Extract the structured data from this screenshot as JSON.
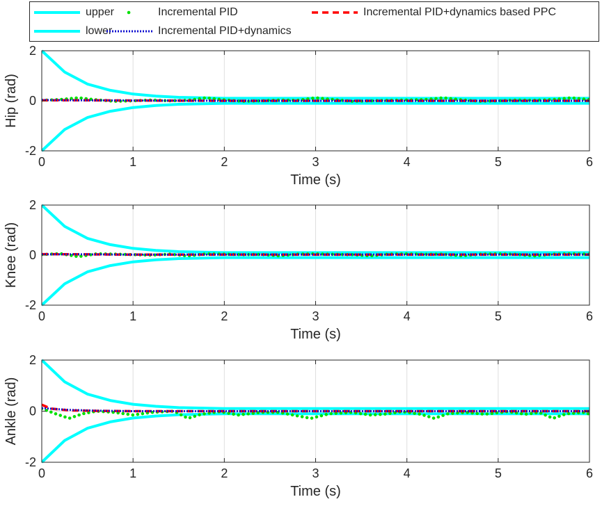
{
  "chart_data": [
    {
      "type": "line",
      "xlabel": "Time (s)",
      "ylabel": "Hip (rad)",
      "xlim": [
        0,
        6
      ],
      "ylim": [
        -2,
        2
      ],
      "xticks": [
        "0",
        "1",
        "2",
        "3",
        "4",
        "5",
        "6"
      ],
      "yticks": [
        "-2",
        "0",
        "2"
      ],
      "grid": true,
      "series": [
        {
          "name": "upper",
          "style": "solid",
          "color": "#00ffff",
          "x": [
            0,
            0.25,
            0.5,
            0.75,
            1.0,
            1.25,
            1.5,
            2.0,
            3.0,
            6.0
          ],
          "y": [
            2.0,
            1.15,
            0.67,
            0.42,
            0.27,
            0.19,
            0.14,
            0.1,
            0.1,
            0.1
          ]
        },
        {
          "name": "lower",
          "style": "solid",
          "color": "#00ffff",
          "x": [
            0,
            0.25,
            0.5,
            0.75,
            1.0,
            1.25,
            1.5,
            2.0,
            3.0,
            6.0
          ],
          "y": [
            -2.0,
            -1.15,
            -0.67,
            -0.42,
            -0.27,
            -0.19,
            -0.14,
            -0.1,
            -0.1,
            -0.1
          ]
        },
        {
          "name": "Incremental PID",
          "style": "dot",
          "color": "#00e000",
          "x": [
            0,
            0.2,
            0.4,
            0.6,
            0.8,
            1.0,
            1.2,
            1.4,
            1.6,
            1.8,
            2.0,
            2.2,
            2.4,
            2.6,
            2.8,
            3.0,
            3.2,
            3.4,
            3.6,
            3.8,
            4.0,
            4.2,
            4.4,
            4.6,
            4.8,
            5.0,
            5.2,
            5.4,
            5.6,
            5.8,
            6.0
          ],
          "y": [
            0.02,
            0.05,
            0.12,
            0.04,
            -0.02,
            0.0,
            0.03,
            0.0,
            0.02,
            0.12,
            0.04,
            -0.02,
            0.0,
            0.03,
            0.02,
            0.12,
            0.05,
            -0.02,
            0.0,
            0.02,
            0.03,
            0.05,
            0.12,
            0.04,
            -0.02,
            0.0,
            0.03,
            0.02,
            0.05,
            0.12,
            0.05
          ]
        },
        {
          "name": "Incremental PID+dynamics",
          "style": "dotted",
          "color": "#1010d0",
          "x": [
            0,
            0.5,
            1.0,
            2.0,
            3.0,
            4.0,
            5.0,
            6.0
          ],
          "y": [
            0.03,
            0.02,
            0.01,
            0.0,
            0.0,
            0.0,
            0.0,
            0.0
          ]
        },
        {
          "name": "Incremental PID+dynamics based PPC",
          "style": "dashed",
          "color": "#ff0000",
          "x": [
            0,
            0.5,
            1.0,
            2.0,
            3.0,
            4.0,
            5.0,
            6.0
          ],
          "y": [
            0.02,
            0.02,
            0.01,
            0.0,
            0.0,
            0.0,
            0.0,
            0.0
          ]
        }
      ]
    },
    {
      "type": "line",
      "xlabel": "Time (s)",
      "ylabel": "Knee (rad)",
      "xlim": [
        0,
        6
      ],
      "ylim": [
        -2,
        2
      ],
      "xticks": [
        "0",
        "1",
        "2",
        "3",
        "4",
        "5",
        "6"
      ],
      "yticks": [
        "-2",
        "0",
        "2"
      ],
      "grid": true,
      "series": [
        {
          "name": "upper",
          "style": "solid",
          "color": "#00ffff",
          "x": [
            0,
            0.25,
            0.5,
            0.75,
            1.0,
            1.25,
            1.5,
            2.0,
            3.0,
            6.0
          ],
          "y": [
            2.0,
            1.15,
            0.67,
            0.42,
            0.27,
            0.19,
            0.14,
            0.1,
            0.1,
            0.1
          ]
        },
        {
          "name": "lower",
          "style": "solid",
          "color": "#00ffff",
          "x": [
            0,
            0.25,
            0.5,
            0.75,
            1.0,
            1.25,
            1.5,
            2.0,
            3.0,
            6.0
          ],
          "y": [
            -2.0,
            -1.15,
            -0.67,
            -0.42,
            -0.27,
            -0.19,
            -0.14,
            -0.1,
            -0.1,
            -0.1
          ]
        },
        {
          "name": "Incremental PID",
          "style": "dot",
          "color": "#00e000",
          "x": [
            0,
            0.2,
            0.4,
            0.6,
            0.8,
            1.0,
            1.2,
            1.4,
            1.6,
            1.8,
            2.0,
            2.2,
            2.4,
            2.6,
            2.8,
            3.0,
            3.2,
            3.4,
            3.6,
            3.8,
            4.0,
            4.2,
            4.4,
            4.6,
            4.8,
            5.0,
            5.2,
            5.4,
            5.6,
            5.8,
            6.0
          ],
          "y": [
            0.02,
            0.06,
            -0.06,
            0.05,
            0.04,
            0.02,
            0.0,
            0.04,
            -0.03,
            0.05,
            0.04,
            0.02,
            0.03,
            -0.03,
            0.04,
            0.05,
            0.03,
            0.02,
            -0.03,
            0.04,
            0.05,
            0.03,
            0.04,
            -0.03,
            0.04,
            0.05,
            0.03,
            -0.03,
            0.04,
            0.05,
            0.04
          ]
        },
        {
          "name": "Incremental PID+dynamics",
          "style": "dotted",
          "color": "#1010d0",
          "x": [
            0,
            0.5,
            1.0,
            2.0,
            3.0,
            4.0,
            5.0,
            6.0
          ],
          "y": [
            0.03,
            0.03,
            0.02,
            0.02,
            0.02,
            0.02,
            0.02,
            0.02
          ]
        },
        {
          "name": "Incremental PID+dynamics based PPC",
          "style": "dashed",
          "color": "#ff0000",
          "x": [
            0,
            0.5,
            1.0,
            2.0,
            3.0,
            4.0,
            5.0,
            6.0
          ],
          "y": [
            0.04,
            0.03,
            0.02,
            0.02,
            0.02,
            0.02,
            0.02,
            0.02
          ]
        }
      ]
    },
    {
      "type": "line",
      "xlabel": "Time (s)",
      "ylabel": "Ankle (rad)",
      "xlim": [
        0,
        6
      ],
      "ylim": [
        -2,
        2
      ],
      "xticks": [
        "0",
        "1",
        "2",
        "3",
        "4",
        "5",
        "6"
      ],
      "yticks": [
        "-2",
        "0",
        "2"
      ],
      "grid": true,
      "series": [
        {
          "name": "upper",
          "style": "solid",
          "color": "#00ffff",
          "x": [
            0,
            0.25,
            0.5,
            0.75,
            1.0,
            1.25,
            1.5,
            2.0,
            3.0,
            6.0
          ],
          "y": [
            2.0,
            1.15,
            0.67,
            0.42,
            0.27,
            0.19,
            0.14,
            0.1,
            0.1,
            0.1
          ]
        },
        {
          "name": "lower",
          "style": "solid",
          "color": "#00ffff",
          "x": [
            0,
            0.25,
            0.5,
            0.75,
            1.0,
            1.25,
            1.5,
            2.0,
            3.0,
            6.0
          ],
          "y": [
            -2.0,
            -1.15,
            -0.67,
            -0.42,
            -0.27,
            -0.19,
            -0.14,
            -0.1,
            -0.1,
            -0.1
          ]
        },
        {
          "name": "Incremental PID",
          "style": "dot",
          "color": "#00e000",
          "x": [
            0,
            0.15,
            0.3,
            0.45,
            0.6,
            0.8,
            1.0,
            1.2,
            1.45,
            1.6,
            1.75,
            1.95,
            2.15,
            2.4,
            2.6,
            2.75,
            2.95,
            3.15,
            3.4,
            3.6,
            3.75,
            3.95,
            4.15,
            4.3,
            4.45,
            4.65,
            4.85,
            5.1,
            5.3,
            5.45,
            5.6,
            5.75,
            5.95,
            6.0
          ],
          "y": [
            0.1,
            -0.1,
            -0.28,
            -0.1,
            0.0,
            -0.05,
            -0.15,
            -0.05,
            0.0,
            -0.28,
            -0.12,
            -0.02,
            -0.15,
            -0.05,
            -0.05,
            -0.15,
            -0.28,
            -0.1,
            -0.05,
            -0.15,
            -0.12,
            -0.02,
            -0.12,
            -0.28,
            -0.1,
            -0.05,
            -0.12,
            -0.02,
            -0.12,
            -0.05,
            -0.28,
            -0.1,
            -0.05,
            -0.12
          ]
        },
        {
          "name": "Incremental PID+dynamics",
          "style": "dotted",
          "color": "#1010d0",
          "x": [
            0,
            0.3,
            0.6,
            1.0,
            2.0,
            3.0,
            4.0,
            5.0,
            6.0
          ],
          "y": [
            0.12,
            0.05,
            0.02,
            0.0,
            0.0,
            0.0,
            0.0,
            0.0,
            0.0
          ]
        },
        {
          "name": "Incremental PID+dynamics based PPC",
          "style": "dashed",
          "color": "#ff0000",
          "x": [
            0,
            0.1,
            0.3,
            0.6,
            1.0,
            2.0,
            3.0,
            4.0,
            5.0,
            6.0
          ],
          "y": [
            0.25,
            0.1,
            0.03,
            0.01,
            0.0,
            0.0,
            0.0,
            0.0,
            0.0,
            0.0
          ]
        }
      ]
    }
  ],
  "legend": {
    "placement": "top",
    "entries": [
      {
        "label": "upper",
        "style": "solid",
        "color": "#00ffff"
      },
      {
        "label": "lower",
        "style": "solid",
        "color": "#00ffff"
      },
      {
        "label": "Incremental PID",
        "style": "dot",
        "color": "#00e000"
      },
      {
        "label": "Incremental PID+dynamics",
        "style": "dotted",
        "color": "#1010d0"
      },
      {
        "label": "Incremental PID+dynamics based PPC",
        "style": "dashed",
        "color": "#ff0000"
      }
    ]
  }
}
